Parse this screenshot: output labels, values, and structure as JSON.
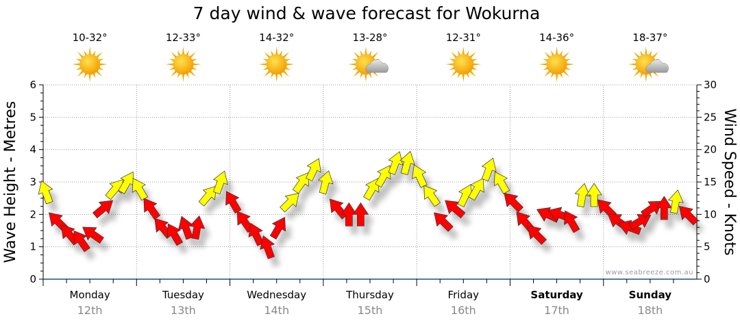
{
  "chart_data": {
    "type": "scatter",
    "title": "7 day wind & wave forecast for Wokurna",
    "ylabel": "Wave Height - Metres",
    "y2label": "Wind Speed - Knots",
    "ylim": [
      0,
      6
    ],
    "y2lim": [
      0,
      30
    ],
    "yticks": [
      "0",
      "1",
      "2",
      "3",
      "4",
      "5",
      "6"
    ],
    "y2ticks": [
      "0",
      "5",
      "10",
      "15",
      "20",
      "25",
      "30"
    ],
    "grid": true,
    "watermark": "www.seabreeze.com.au",
    "days": [
      {
        "name": "Monday",
        "date": "12th",
        "temp": "10-32°",
        "icon": "sun-icon",
        "weekend": false
      },
      {
        "name": "Tuesday",
        "date": "13th",
        "temp": "12-33°",
        "icon": "sun-icon",
        "weekend": false
      },
      {
        "name": "Wednesday",
        "date": "14th",
        "temp": "14-32°",
        "icon": "sun-icon",
        "weekend": false
      },
      {
        "name": "Thursday",
        "date": "15th",
        "temp": "13-28°",
        "icon": "sun-cloud-icon",
        "weekend": false
      },
      {
        "name": "Friday",
        "date": "16th",
        "temp": "12-31°",
        "icon": "sun-icon",
        "weekend": false
      },
      {
        "name": "Saturday",
        "date": "17th",
        "temp": "14-36°",
        "icon": "sun-icon",
        "weekend": true
      },
      {
        "name": "Sunday",
        "date": "18th",
        "temp": "18-37°",
        "icon": "sun-cloud-icon",
        "weekend": true
      }
    ],
    "colors": {
      "red": "#ff0000",
      "yellow": "#ffff00"
    },
    "wind": {
      "unit": "knots",
      "interval_hours": 3,
      "speed": [
        13.5,
        9,
        7,
        6,
        7,
        11,
        14,
        15,
        14,
        11,
        8,
        7,
        8,
        8,
        13,
        15,
        12,
        9,
        7,
        5,
        8,
        12,
        15,
        17,
        15,
        11,
        10,
        10,
        14,
        16,
        18,
        18,
        16,
        13,
        9,
        11,
        13,
        14,
        17,
        15,
        12,
        9,
        7,
        10,
        10,
        9,
        13,
        13,
        11,
        9,
        8,
        9,
        11,
        11,
        12,
        10
      ],
      "direction_deg": [
        -20,
        -45,
        -40,
        -35,
        -55,
        50,
        40,
        30,
        -30,
        -35,
        -40,
        -30,
        -20,
        10,
        40,
        20,
        -30,
        -35,
        -25,
        -20,
        30,
        45,
        35,
        25,
        15,
        -40,
        0,
        0,
        30,
        30,
        20,
        15,
        -25,
        -35,
        -45,
        -50,
        25,
        30,
        20,
        -30,
        -45,
        -40,
        -45,
        -65,
        -70,
        -30,
        10,
        0,
        -45,
        -55,
        -70,
        60,
        55,
        0,
        10,
        -45
      ],
      "color": [
        "yellow",
        "red",
        "red",
        "red",
        "red",
        "red",
        "yellow",
        "yellow",
        "yellow",
        "red",
        "red",
        "red",
        "red",
        "red",
        "yellow",
        "yellow",
        "red",
        "red",
        "red",
        "red",
        "red",
        "yellow",
        "yellow",
        "yellow",
        "yellow",
        "red",
        "red",
        "red",
        "yellow",
        "yellow",
        "yellow",
        "yellow",
        "yellow",
        "yellow",
        "red",
        "red",
        "yellow",
        "yellow",
        "yellow",
        "yellow",
        "red",
        "red",
        "red",
        "red",
        "red",
        "red",
        "yellow",
        "yellow",
        "red",
        "red",
        "red",
        "red",
        "red",
        "red",
        "yellow",
        "red"
      ]
    }
  }
}
